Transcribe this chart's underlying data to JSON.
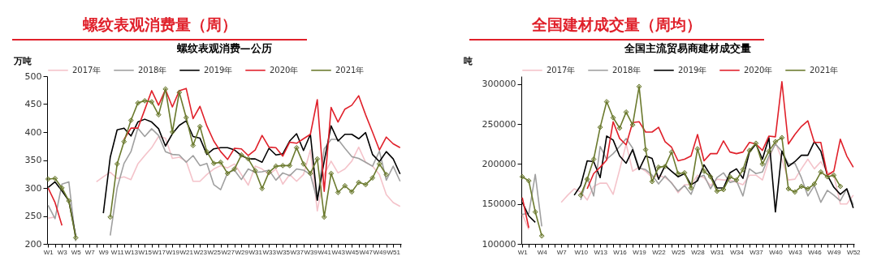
{
  "chart_data": [
    {
      "type": "line",
      "title": "螺纹表观消费量（周）",
      "subtitle": "螺纹表观消费—公历",
      "ylabel": "万吨",
      "legend": "top",
      "ylim": [
        200,
        500
      ],
      "yticks": [
        200,
        250,
        300,
        350,
        400,
        450,
        500
      ],
      "categories": [
        "W1",
        null,
        "W3",
        null,
        "W5",
        null,
        "W7",
        null,
        "W9",
        null,
        "W11",
        null,
        "W13",
        null,
        "W15",
        null,
        "W17",
        null,
        "W19",
        null,
        "W21",
        null,
        "W23",
        null,
        "W25",
        null,
        "W27",
        null,
        "W29",
        null,
        "W31",
        null,
        "W33",
        null,
        "W35",
        null,
        "W37",
        null,
        "W39",
        null,
        "W41",
        null,
        "W43",
        null,
        "W45",
        null,
        "W47",
        null,
        "W49",
        null,
        "W51",
        null
      ],
      "series": [
        {
          "name": "2017年",
          "color": "#f4c3ca",
          "values": [
            246,
            248,
            null,
            null,
            null,
            null,
            null,
            311,
            320,
            328,
            317,
            320,
            315,
            343,
            358,
            372,
            392,
            389,
            353,
            355,
            348,
            312,
            312,
            324,
            334,
            340,
            336,
            343,
            324,
            305,
            339,
            334,
            324,
            334,
            307,
            324,
            312,
            324,
            368,
            259,
            324,
            348,
            327,
            334,
            348,
            373,
            346,
            339,
            324,
            288,
            274,
            267
          ]
        },
        {
          "name": "2018年",
          "color": "#a0a0a0",
          "values": [
            269,
            245,
            307,
            311,
            205,
            null,
            null,
            null,
            null,
            215,
            300,
            344,
            365,
            407,
            392,
            406,
            394,
            365,
            360,
            359,
            346,
            358,
            340,
            344,
            306,
            297,
            327,
            332,
            315,
            334,
            328,
            329,
            332,
            314,
            327,
            322,
            334,
            332,
            324,
            278,
            370,
            387,
            387,
            371,
            356,
            353,
            346,
            339,
            366,
            314,
            339,
            312
          ]
        },
        {
          "name": "2019年",
          "color": "#000000",
          "values": [
            301,
            311,
            295,
            277,
            214,
            null,
            null,
            null,
            255,
            355,
            404,
            407,
            393,
            418,
            423,
            418,
            406,
            375,
            397,
            412,
            420,
            392,
            389,
            360,
            370,
            372,
            372,
            368,
            358,
            352,
            352,
            346,
            371,
            359,
            361,
            384,
            397,
            367,
            396,
            278,
            348,
            411,
            384,
            396,
            396,
            388,
            399,
            360,
            347,
            365,
            352,
            325
          ]
        },
        {
          "name": "2020年",
          "color": "#e0202a",
          "values": [
            300,
            274,
            233,
            null,
            null,
            null,
            null,
            null,
            null,
            null,
            null,
            387,
            407,
            407,
            440,
            474,
            448,
            476,
            445,
            474,
            478,
            424,
            446,
            411,
            384,
            365,
            351,
            371,
            370,
            358,
            368,
            394,
            373,
            372,
            357,
            382,
            380,
            388,
            396,
            458,
            294,
            444,
            418,
            441,
            448,
            465,
            431,
            400,
            368,
            391,
            379,
            372
          ]
        },
        {
          "name": "2021年",
          "color": "#6b7a2e",
          "marker": "diamond",
          "values": [
            316,
            317,
            300,
            277,
            211,
            null,
            null,
            null,
            null,
            248,
            343,
            383,
            421,
            452,
            456,
            454,
            431,
            477,
            400,
            471,
            426,
            376,
            410,
            365,
            344,
            346,
            326,
            334,
            359,
            352,
            331,
            299,
            328,
            339,
            340,
            340,
            372,
            343,
            326,
            352,
            248,
            326,
            292,
            304,
            293,
            310,
            306,
            318,
            343,
            324,
            null,
            null
          ]
        }
      ]
    },
    {
      "type": "line",
      "title": "全国建材成交量（周均）",
      "subtitle": "全国主流贸易商建材成交量",
      "ylabel": "吨",
      "legend": "top",
      "ylim": [
        100000,
        310000
      ],
      "yticks": [
        100000,
        150000,
        200000,
        250000,
        300000
      ],
      "categories": [
        "W1",
        null,
        null,
        "W4",
        null,
        null,
        "W7",
        null,
        null,
        "W10",
        null,
        null,
        "W13",
        null,
        null,
        "W16",
        null,
        null,
        "W19",
        null,
        null,
        "W22",
        null,
        null,
        "W25",
        null,
        null,
        "W28",
        null,
        null,
        "W31",
        null,
        null,
        "W34",
        null,
        null,
        "W37",
        null,
        null,
        "W40",
        null,
        null,
        "W43",
        null,
        null,
        "W46",
        null,
        null,
        "W49",
        null,
        null,
        "W52"
      ],
      "series": [
        {
          "name": "2017年",
          "color": "#f4c3ca",
          "values": [
            137000,
            118000,
            null,
            null,
            null,
            null,
            152000,
            161000,
            169000,
            165000,
            155000,
            172000,
            176000,
            176000,
            162000,
            193000,
            225000,
            191000,
            196000,
            191000,
            183000,
            186000,
            183000,
            177000,
            164000,
            174000,
            174000,
            186000,
            183000,
            173000,
            181000,
            180000,
            180000,
            177000,
            174000,
            186000,
            186000,
            180000,
            206000,
            227000,
            206000,
            180000,
            181000,
            194000,
            206000,
            194000,
            203000,
            190000,
            186000,
            150000,
            150000,
            161000
          ]
        },
        {
          "name": "2018年",
          "color": "#a0a0a0",
          "values": [
            137000,
            138000,
            187000,
            122000,
            null,
            null,
            null,
            null,
            null,
            155000,
            183000,
            160000,
            222000,
            206000,
            213000,
            222000,
            232000,
            220000,
            195000,
            193000,
            186000,
            175000,
            185000,
            176000,
            166000,
            173000,
            162000,
            183000,
            186000,
            169000,
            183000,
            189000,
            177000,
            179000,
            160000,
            194000,
            188000,
            190000,
            210000,
            225000,
            216000,
            200000,
            201000,
            183000,
            160000,
            173000,
            152000,
            167000,
            161000,
            154000,
            169000,
            149000
          ]
        },
        {
          "name": "2019年",
          "color": "#000000",
          "values": [
            152000,
            135000,
            127000,
            null,
            null,
            null,
            null,
            null,
            161000,
            173000,
            204000,
            203000,
            183000,
            235000,
            230000,
            210000,
            201000,
            218000,
            193000,
            210000,
            207000,
            181000,
            198000,
            191000,
            184000,
            188000,
            174000,
            179000,
            199000,
            186000,
            170000,
            170000,
            189000,
            194000,
            182000,
            215000,
            225000,
            206000,
            233000,
            140000,
            216000,
            197000,
            203000,
            211000,
            211000,
            228000,
            216000,
            186000,
            171000,
            162000,
            169000,
            145000
          ]
        },
        {
          "name": "2020年",
          "color": "#e0202a",
          "values": [
            158000,
            120000,
            null,
            null,
            null,
            null,
            null,
            null,
            null,
            null,
            169000,
            188000,
            196000,
            205000,
            253000,
            232000,
            224000,
            252000,
            253000,
            240000,
            240000,
            246000,
            228000,
            221000,
            204000,
            206000,
            210000,
            237000,
            204000,
            213000,
            213000,
            229000,
            215000,
            213000,
            215000,
            227000,
            225000,
            217000,
            235000,
            234000,
            303000,
            225000,
            237000,
            247000,
            254000,
            227000,
            227000,
            186000,
            191000,
            231000,
            210000,
            196000
          ]
        },
        {
          "name": "2021年",
          "color": "#6b7a2e",
          "marker": "diamond",
          "values": [
            184000,
            179000,
            140000,
            110000,
            null,
            null,
            null,
            null,
            null,
            161000,
            181000,
            206000,
            246000,
            278000,
            258000,
            245000,
            265000,
            249000,
            297000,
            218000,
            178000,
            196000,
            197000,
            215000,
            188000,
            189000,
            170000,
            219000,
            191000,
            184000,
            166000,
            168000,
            184000,
            180000,
            193000,
            217000,
            226000,
            200000,
            216000,
            228000,
            233000,
            169000,
            165000,
            172000,
            169000,
            175000,
            190000,
            184000,
            186000,
            172000,
            null,
            null
          ]
        }
      ]
    }
  ]
}
